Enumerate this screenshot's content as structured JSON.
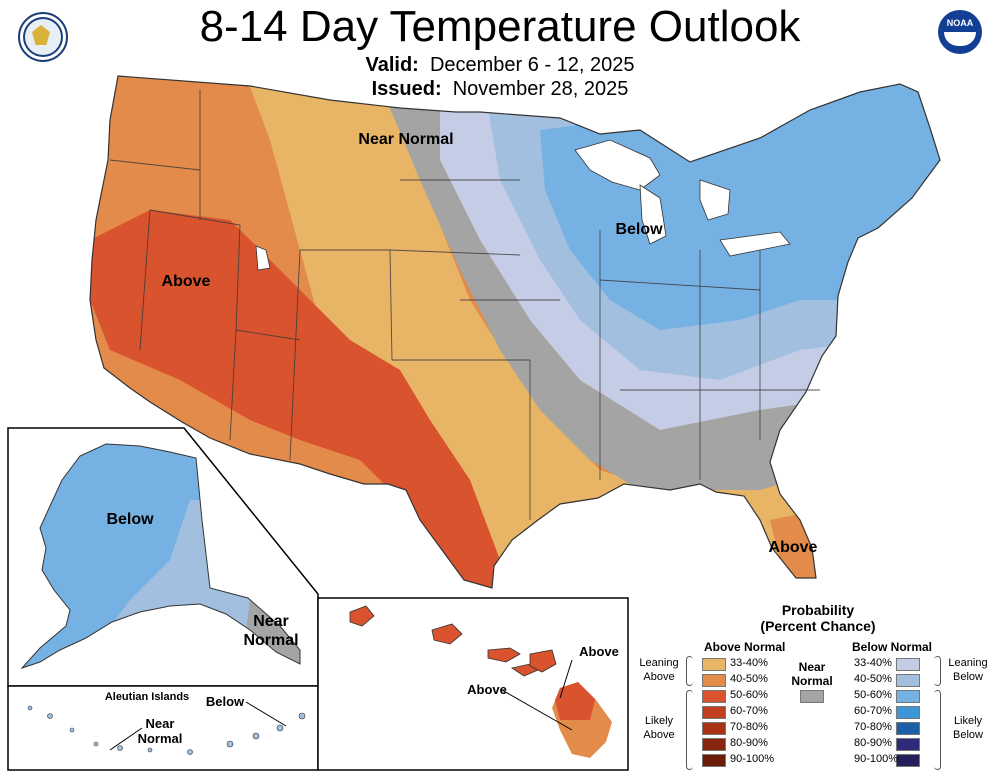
{
  "title": "8-14 Day Temperature Outlook",
  "valid": {
    "label": "Valid:",
    "value": "December 6 - 12, 2025"
  },
  "issued": {
    "label": "Issued:",
    "value": "November 28, 2025"
  },
  "logos": {
    "left": "department-of-commerce-seal",
    "right": "noaa-logo",
    "noaa_text": "NOAA"
  },
  "map_labels": {
    "west_above": "Above",
    "near_normal": "Near Normal",
    "east_below": "Below",
    "florida_above": "Above",
    "alaska_below": "Below",
    "alaska_near": "Near Normal",
    "aleutian_title": "Aleutian Islands",
    "aleutian_below": "Below",
    "aleutian_near": "Near Normal",
    "hawaii_above_1": "Above",
    "hawaii_above_2": "Above"
  },
  "legend": {
    "title": "Probability",
    "subtitle": "(Percent Chance)",
    "above_header": "Above Normal",
    "below_header": "Below Normal",
    "near_label": "Near Normal",
    "near_color": "#a4a4a4",
    "leaning_above": "Leaning Above",
    "likely_above": "Likely Above",
    "leaning_below": "Leaning Below",
    "likely_below": "Likely Below",
    "above_items": [
      {
        "range": "33-40%",
        "color": "#e8b466"
      },
      {
        "range": "40-50%",
        "color": "#e38b4a"
      },
      {
        "range": "50-60%",
        "color": "#d8532e"
      },
      {
        "range": "60-70%",
        "color": "#c1401f"
      },
      {
        "range": "70-80%",
        "color": "#a73214"
      },
      {
        "range": "80-90%",
        "color": "#86260e"
      },
      {
        "range": "90-100%",
        "color": "#6a1c08"
      }
    ],
    "below_items": [
      {
        "range": "33-40%",
        "color": "#c5cde6"
      },
      {
        "range": "40-50%",
        "color": "#a3bfe0"
      },
      {
        "range": "50-60%",
        "color": "#76b1e3"
      },
      {
        "range": "60-70%",
        "color": "#3c95d6"
      },
      {
        "range": "70-80%",
        "color": "#1c5ea8"
      },
      {
        "range": "80-90%",
        "color": "#2e2a78"
      },
      {
        "range": "90-100%",
        "color": "#241f5a"
      }
    ]
  }
}
